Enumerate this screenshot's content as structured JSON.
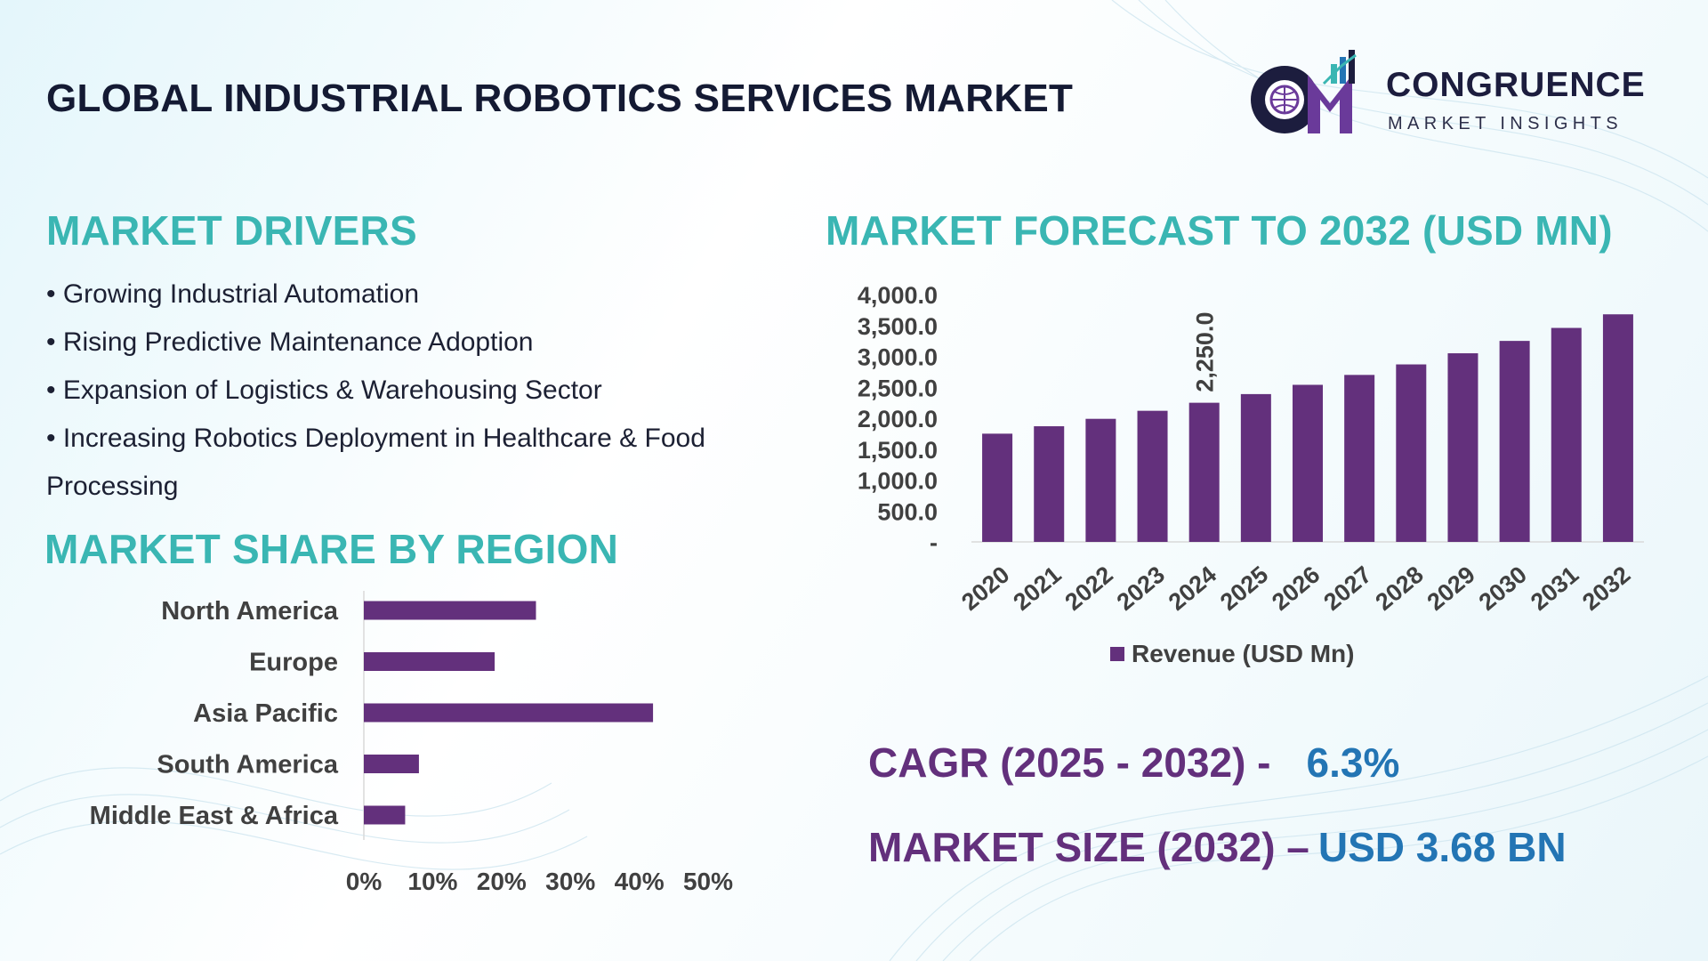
{
  "header": {
    "title": "GLOBAL INDUSTRIAL ROBOTICS SERVICES MARKET",
    "logo_name": "CONGRUENCE",
    "logo_sub": "MARKET INSIGHTS"
  },
  "drivers": {
    "heading": "MARKET DRIVERS",
    "items": [
      "• Growing Industrial Automation",
      "• Rising Predictive Maintenance Adoption",
      "• Expansion of Logistics & Warehousing Sector",
      "• Increasing Robotics Deployment in Healthcare & Food Processing"
    ]
  },
  "share": {
    "heading": "MARKET SHARE BY REGION"
  },
  "forecast": {
    "heading": "MARKET FORECAST TO 2032 (USD MN)"
  },
  "kpis": {
    "cagr_label": "CAGR (2025 - 2032) -",
    "cagr_value": "6.3%",
    "size_label": "MARKET SIZE (2032) –",
    "size_value": "USD 3.68 BN"
  },
  "colors": {
    "bar": "#63307c",
    "heading": "#3ab6b3",
    "kpi_label": "#63307c",
    "kpi_value": "#2375b4",
    "axis_text": "#404040"
  },
  "chart_data": [
    {
      "type": "bar",
      "orientation": "vertical",
      "categories": [
        "2020",
        "2021",
        "2022",
        "2023",
        "2024",
        "2025",
        "2026",
        "2027",
        "2028",
        "2029",
        "2030",
        "2031",
        "2032"
      ],
      "series": [
        {
          "name": "Revenue (USD Mn)",
          "values": [
            1750,
            1870,
            1990,
            2120,
            2250,
            2390,
            2540,
            2700,
            2870,
            3050,
            3250,
            3460,
            3680
          ]
        }
      ],
      "data_labels": [
        {
          "index": 4,
          "text": "2,250.0"
        }
      ],
      "yticks": [
        "-",
        "500.0",
        "1,000.0",
        "1,500.0",
        "2,000.0",
        "2,500.0",
        "3,000.0",
        "3,500.0",
        "4,000.0"
      ],
      "ylim": [
        0,
        4000
      ],
      "legend": "bottom",
      "grid": false
    },
    {
      "type": "bar",
      "orientation": "horizontal",
      "categories": [
        "North America",
        "Europe",
        "Asia Pacific",
        "South America",
        "Middle East & Africa"
      ],
      "values": [
        25,
        19,
        42,
        8,
        6
      ],
      "xticks": [
        "0%",
        "10%",
        "20%",
        "30%",
        "40%",
        "50%"
      ],
      "xlim": [
        0,
        50
      ],
      "unit": "%",
      "grid": false
    }
  ]
}
